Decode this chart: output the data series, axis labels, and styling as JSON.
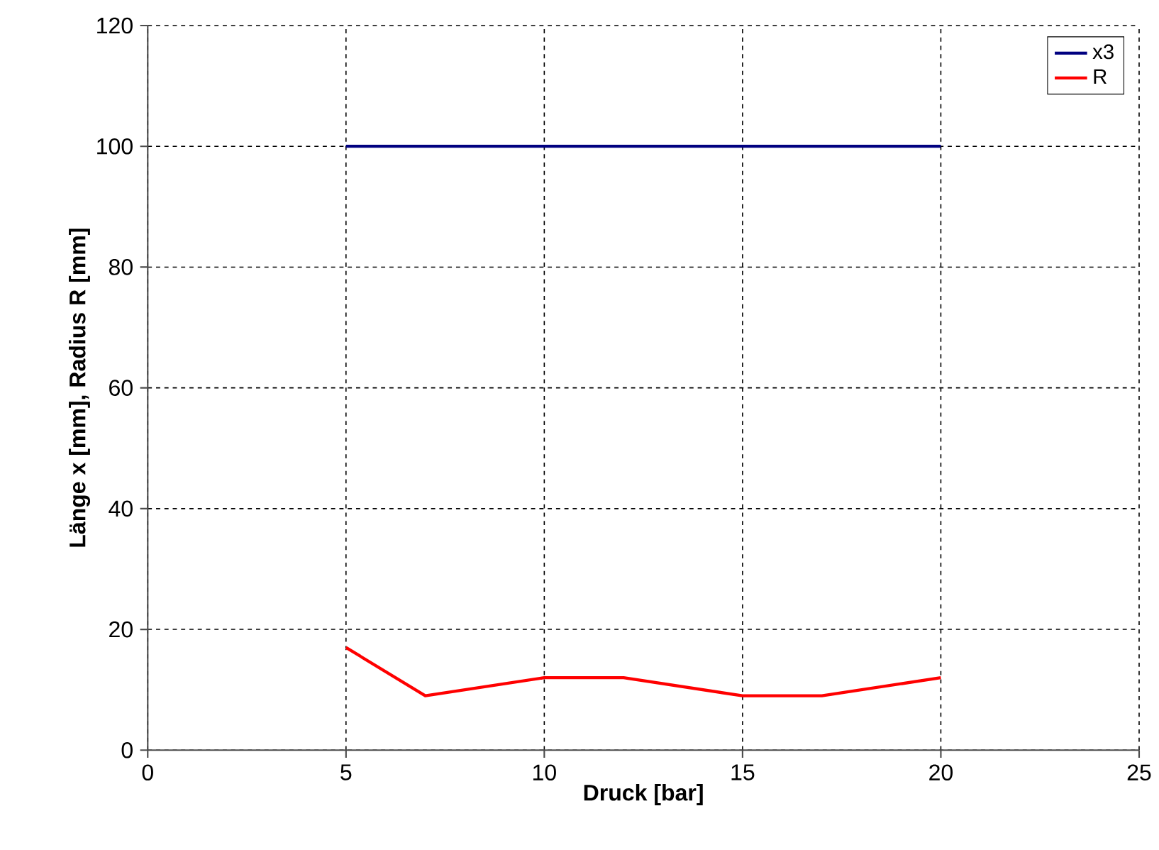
{
  "chart_data": {
    "type": "line",
    "xlabel": "Druck [bar]",
    "ylabel": "Länge x [mm], Radius R [mm]",
    "xlim": [
      0,
      25
    ],
    "xticks": [
      0,
      5,
      10,
      15,
      20,
      25
    ],
    "ylim": [
      0,
      120
    ],
    "yticks": [
      0,
      20,
      40,
      60,
      80,
      100,
      120
    ],
    "grid": true,
    "legend": "top right",
    "marker": "none",
    "line_style": "solid",
    "series": [
      {
        "name": "x3",
        "color": "#000080",
        "x": [
          5,
          7,
          10,
          12,
          15,
          17,
          20
        ],
        "values": [
          100,
          100,
          100,
          100,
          100,
          100,
          100
        ]
      },
      {
        "name": "R",
        "color": "#ff0000",
        "x": [
          5,
          7,
          10,
          12,
          15,
          17,
          20
        ],
        "values": [
          17,
          9,
          12,
          12,
          9,
          9,
          12
        ]
      }
    ]
  }
}
